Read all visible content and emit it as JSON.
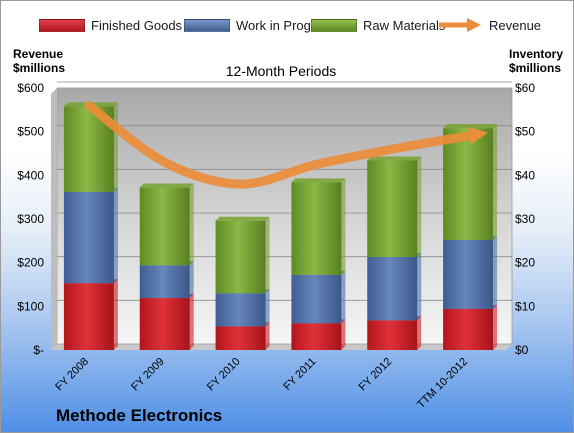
{
  "legend": {
    "finished_goods": "Finished Goods",
    "work_in_progress": "Work in Progress",
    "raw_materials": "Raw Materials",
    "revenue": "Revenue"
  },
  "left_axis_title": [
    "Revenue",
    "$millions"
  ],
  "right_axis_title": [
    "Inventory",
    "$millions"
  ],
  "company": "Methode Electronics",
  "chart_data": {
    "type": "bar",
    "subtitle": "12-Month Periods",
    "categories": [
      "FY 2008",
      "FY 2009",
      "FY 2010",
      "FY 2011",
      "FY 2012",
      "TTM 10-2012"
    ],
    "series": [
      {
        "name": "Finished Goods",
        "type": "bar",
        "axis": "right",
        "color": "#cc2027",
        "values": [
          15.3,
          11.9,
          5.4,
          6.1,
          6.8,
          9.4
        ]
      },
      {
        "name": "Work in Progress",
        "type": "bar",
        "axis": "right",
        "color": "#4e6fa4",
        "values": [
          20.9,
          7.5,
          7.6,
          11.1,
          14.5,
          15.8
        ]
      },
      {
        "name": "Raw Materials",
        "type": "bar",
        "axis": "right",
        "color": "#76a22e",
        "values": [
          19.6,
          17.8,
          16.6,
          21.2,
          22.1,
          25.6
        ]
      },
      {
        "name": "Revenue",
        "type": "line",
        "axis": "left",
        "color": "#ec8d3a",
        "values": [
          560,
          430,
          380,
          425,
          460,
          490
        ]
      }
    ],
    "left_axis": {
      "ylim": [
        0,
        600
      ],
      "ticks": [
        "$-",
        "$100",
        "$200",
        "$300",
        "$400",
        "$500",
        "$600"
      ]
    },
    "right_axis": {
      "ylim": [
        0,
        60
      ],
      "ticks": [
        "$0",
        "$10",
        "$20",
        "$30",
        "$40",
        "$50",
        "$60"
      ]
    },
    "grid": true,
    "legend_position": "top"
  }
}
